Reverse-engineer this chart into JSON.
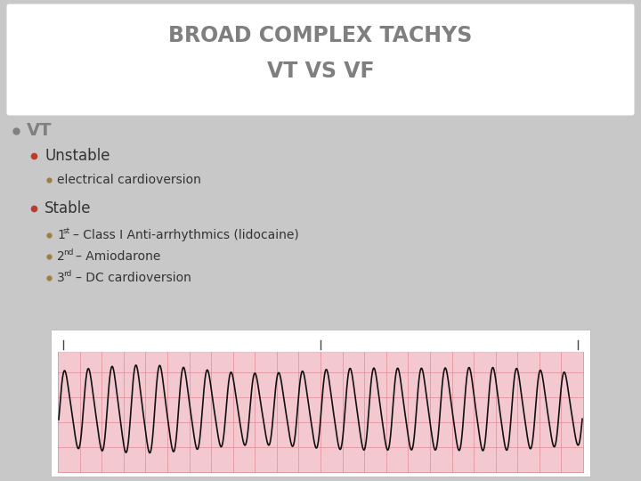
{
  "title_line1": "BROAD COMPLEX TACHYS",
  "title_line2": "VT VS VF",
  "title_color": "#7f7f7f",
  "title_bg": "#ffffff",
  "slide_bg": "#c8c8c8",
  "bullet1": "VT",
  "bullet1_color": "#808080",
  "bullet2_color": "#c0392b",
  "bullet3_color": "#9b8040",
  "text_color": "#333333",
  "ecg_bg": "#f5c8d0",
  "ecg_grid_major": "#e0909a",
  "ecg_grid_minor": "#edd0d5",
  "ecg_line_color": "#111111",
  "ecg_frame_bg": "#ffffff",
  "ecg_tick_color": "#444444"
}
